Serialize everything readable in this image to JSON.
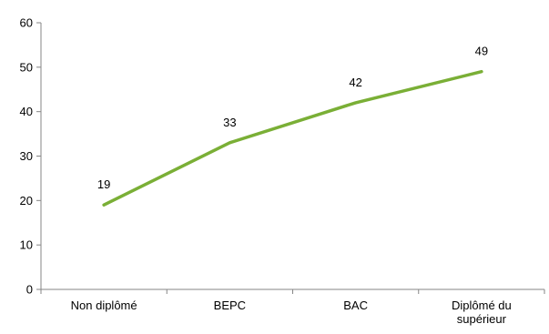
{
  "chart_data": {
    "type": "line",
    "title": "",
    "xlabel": "",
    "ylabel": "",
    "categories": [
      "Non diplômé",
      "BEPC",
      "BAC",
      "Diplômé du supérieur"
    ],
    "series": [
      {
        "values": [
          19,
          33,
          42,
          49
        ],
        "color": "#7AAF36"
      }
    ],
    "ylim": [
      0,
      60
    ],
    "yticks": [
      0,
      10,
      20,
      30,
      40,
      50,
      60
    ],
    "grid": false,
    "legend": "none",
    "data_labels": true
  }
}
